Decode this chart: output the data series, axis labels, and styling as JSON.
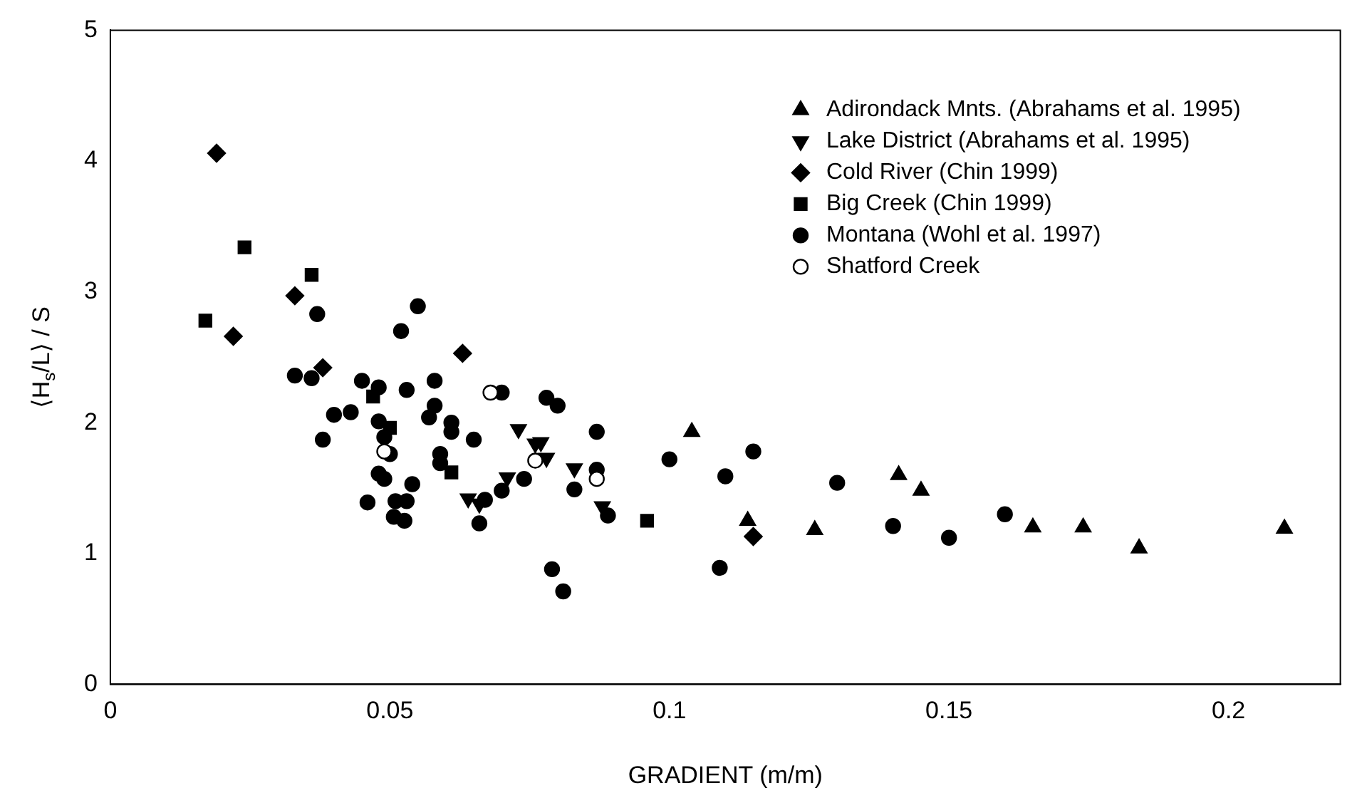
{
  "chart_data": {
    "type": "scatter",
    "xlabel": "GRADIENT (m/m)",
    "ylabel": "⟨H$_{s}$/L⟩ / S",
    "xlim": [
      0,
      0.22
    ],
    "ylim": [
      0,
      5
    ],
    "xticks": [
      0,
      0.05,
      0.1,
      0.15,
      0.2
    ],
    "yticks": [
      0,
      1,
      2,
      3,
      4,
      5
    ],
    "grid": false,
    "legend": "top right",
    "series": [
      {
        "name": "Adirondack Mnts. (Abrahams et al. 1995)",
        "color": "#000000",
        "marker": "triangle",
        "x": [
          0.104,
          0.114,
          0.126,
          0.141,
          0.145,
          0.165,
          0.174,
          0.184,
          0.21
        ],
        "values": [
          1.93,
          1.25,
          1.18,
          1.6,
          1.48,
          1.2,
          1.2,
          1.04,
          1.19
        ]
      },
      {
        "name": "Lake District (Abrahams et al. 1995)",
        "color": "#000000",
        "marker": "triangle-down",
        "x": [
          0.073,
          0.076,
          0.077,
          0.078,
          0.083,
          0.071,
          0.064,
          0.066,
          0.088
        ],
        "values": [
          1.95,
          1.84,
          1.85,
          1.73,
          1.65,
          1.58,
          1.42,
          1.38,
          1.36
        ]
      },
      {
        "name": "Cold River (Chin 1999)",
        "color": "#000000",
        "marker": "diamond",
        "x": [
          0.019,
          0.022,
          0.033,
          0.038,
          0.063,
          0.115
        ],
        "values": [
          4.06,
          2.66,
          2.97,
          2.42,
          2.53,
          1.13
        ]
      },
      {
        "name": "Big Creek (Chin 1999)",
        "color": "#000000",
        "marker": "square",
        "x": [
          0.017,
          0.024,
          0.036,
          0.047,
          0.05,
          0.061,
          0.096
        ],
        "values": [
          2.78,
          3.34,
          3.13,
          2.2,
          1.96,
          1.62,
          1.25
        ]
      },
      {
        "name": "Montana (Wohl et al. 1997)",
        "color": "#000000",
        "marker": "circle",
        "x": [
          0.037,
          0.033,
          0.036,
          0.038,
          0.04,
          0.043,
          0.045,
          0.048,
          0.048,
          0.049,
          0.05,
          0.048,
          0.049,
          0.046,
          0.051,
          0.053,
          0.0507,
          0.0526,
          0.054,
          0.053,
          0.052,
          0.055,
          0.058,
          0.058,
          0.057,
          0.061,
          0.061,
          0.059,
          0.059,
          0.065,
          0.07,
          0.078,
          0.08,
          0.066,
          0.067,
          0.07,
          0.074,
          0.083,
          0.087,
          0.087,
          0.089,
          0.079,
          0.081,
          0.1,
          0.11,
          0.115,
          0.109,
          0.13,
          0.14,
          0.15,
          0.16
        ],
        "values": [
          2.83,
          2.36,
          2.34,
          1.87,
          2.06,
          2.08,
          2.32,
          2.27,
          2.01,
          1.89,
          1.76,
          1.61,
          1.57,
          1.39,
          1.4,
          1.4,
          1.28,
          1.25,
          1.53,
          2.25,
          2.7,
          2.89,
          2.32,
          2.13,
          2.04,
          2.0,
          1.93,
          1.76,
          1.69,
          1.87,
          2.23,
          2.19,
          2.13,
          1.23,
          1.41,
          1.48,
          1.57,
          1.49,
          1.93,
          1.64,
          1.29,
          0.88,
          0.71,
          1.72,
          1.59,
          1.78,
          0.89,
          1.54,
          1.21,
          1.12,
          1.3
        ]
      },
      {
        "name": "Shatford Creek",
        "color": "#ffffff",
        "marker": "circle",
        "x": [
          0.049,
          0.068,
          0.076,
          0.087
        ],
        "values": [
          1.78,
          2.23,
          1.71,
          1.57
        ]
      }
    ]
  }
}
